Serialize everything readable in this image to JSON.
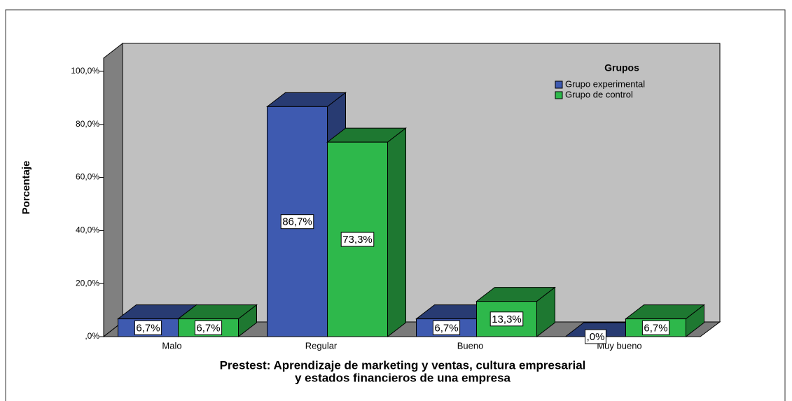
{
  "chart_data": {
    "type": "bar3d",
    "x_label": [
      "Prestest: Aprendizaje de marketing y ventas, cultura empresarial",
      "y estados financieros de una empresa"
    ],
    "y_label": "Porcentaje",
    "legend_title": "Grupos",
    "legend": "top-right",
    "categories": [
      "Malo",
      "Regular",
      "Bueno",
      "Muy bueno"
    ],
    "series": [
      {
        "name": "Grupo experimental",
        "color": "#3e5ab0",
        "values": [
          6.7,
          86.7,
          6.7,
          0
        ],
        "value_labels": [
          "6,7%",
          "86,7%",
          "6,7%",
          ",0%"
        ]
      },
      {
        "name": "Grupo de control",
        "color": "#2eb84b",
        "values": [
          6.7,
          73.3,
          13.3,
          6.7
        ],
        "value_labels": [
          "6,7%",
          "73,3%",
          "13,3%",
          "6,7%"
        ]
      }
    ],
    "ylim": [
      0,
      105
    ],
    "yticks": [
      {
        "value": 0,
        "label": ",0%"
      },
      {
        "value": 20,
        "label": "20,0%"
      },
      {
        "value": 40,
        "label": "40,0%"
      },
      {
        "value": 60,
        "label": "60,0%"
      },
      {
        "value": 80,
        "label": "80,0%"
      },
      {
        "value": 100,
        "label": "100,0%"
      }
    ]
  }
}
